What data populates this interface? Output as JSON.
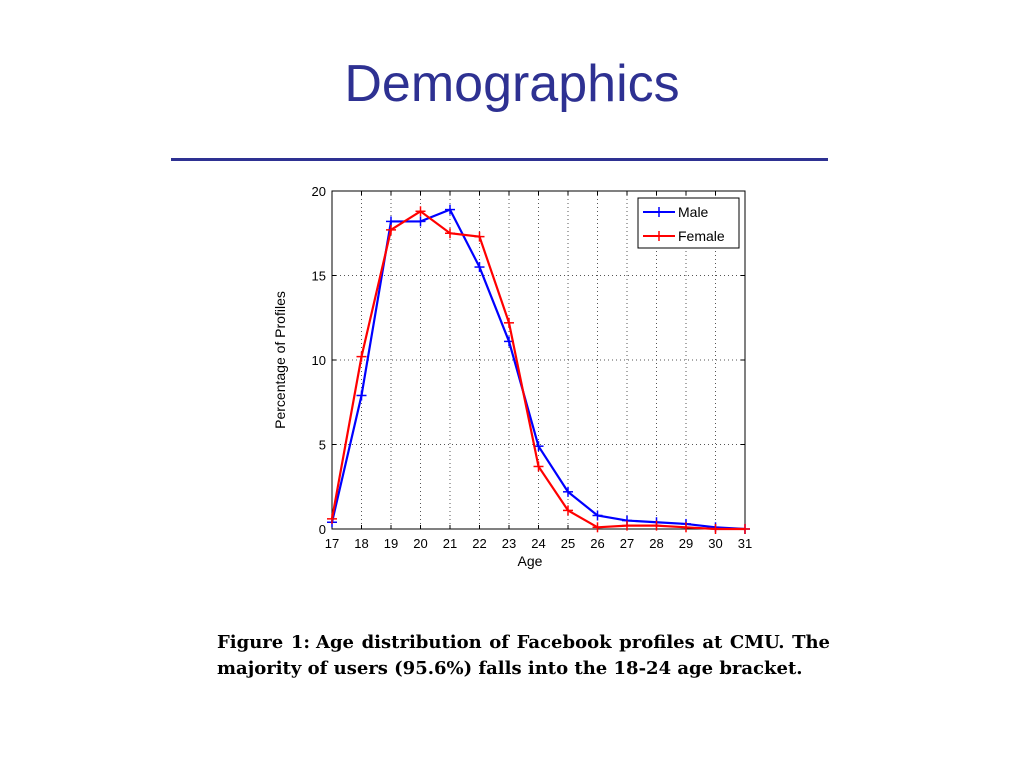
{
  "slide": {
    "title": "Demographics"
  },
  "caption": {
    "label": "Figure 1:",
    "text": "Age distribution of Facebook profiles at CMU. The majority of users (95.6%) falls into the 18-24 age bracket."
  },
  "colors": {
    "title": "#2e3192",
    "male": "#0000ff",
    "female": "#ff0000"
  },
  "chart_data": {
    "type": "line",
    "title": "",
    "xlabel": "Age",
    "ylabel": "Percentage of Profiles",
    "xlim": [
      17,
      31
    ],
    "ylim": [
      0,
      20
    ],
    "xticks": [
      17,
      18,
      19,
      20,
      21,
      22,
      23,
      24,
      25,
      26,
      27,
      28,
      29,
      30,
      31
    ],
    "yticks": [
      0,
      5,
      10,
      15,
      20
    ],
    "grid": true,
    "legend_position": "top-right",
    "x": [
      17,
      18,
      19,
      20,
      21,
      22,
      23,
      24,
      25,
      26,
      27,
      28,
      29,
      30,
      31
    ],
    "series": [
      {
        "name": "Male",
        "color": "#0000ff",
        "marker": "+",
        "values": [
          0.4,
          7.9,
          18.2,
          18.2,
          18.9,
          15.5,
          11.1,
          4.9,
          2.2,
          0.8,
          0.5,
          0.4,
          0.3,
          0.1,
          0.0
        ]
      },
      {
        "name": "Female",
        "color": "#ff0000",
        "marker": "+",
        "values": [
          0.6,
          10.2,
          17.7,
          18.8,
          17.5,
          17.3,
          12.2,
          3.7,
          1.1,
          0.1,
          0.2,
          0.2,
          0.1,
          0.0,
          0.0
        ]
      }
    ]
  }
}
